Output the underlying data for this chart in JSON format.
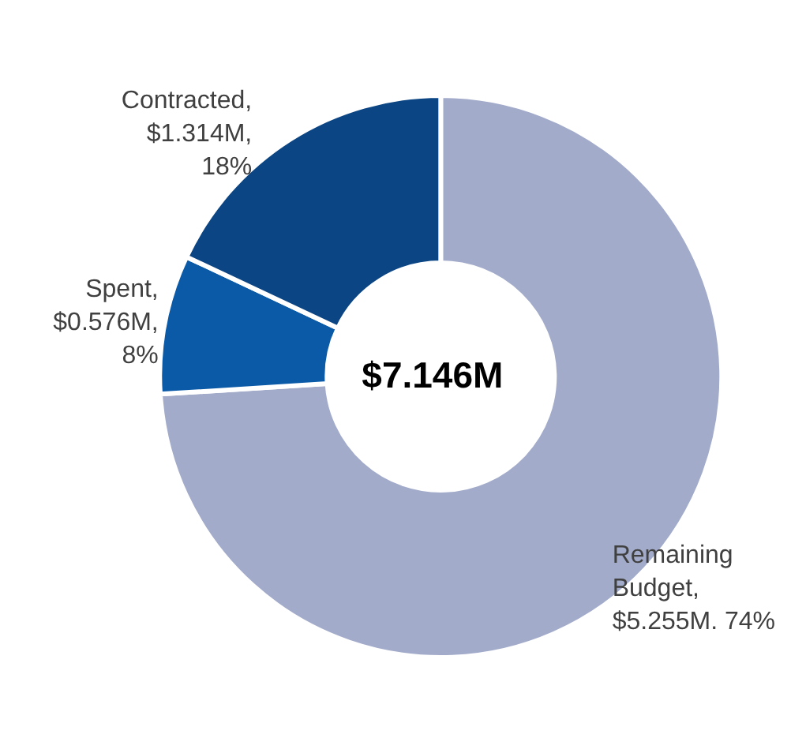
{
  "chart_data": {
    "type": "donut",
    "categories": [
      "Remaining Budget",
      "Spent",
      "Contracted"
    ],
    "values": [
      74,
      8,
      18
    ],
    "value_labels": [
      ",\n$5.255M. 74%",
      ",\n$0.576M,\n8%",
      ",\n$1.314M,\n18%"
    ],
    "colors": [
      "#a2abca",
      "#0b5aa8",
      "#0b4584"
    ],
    "annotations": [
      "$7.146M"
    ],
    "legend": false
  }
}
